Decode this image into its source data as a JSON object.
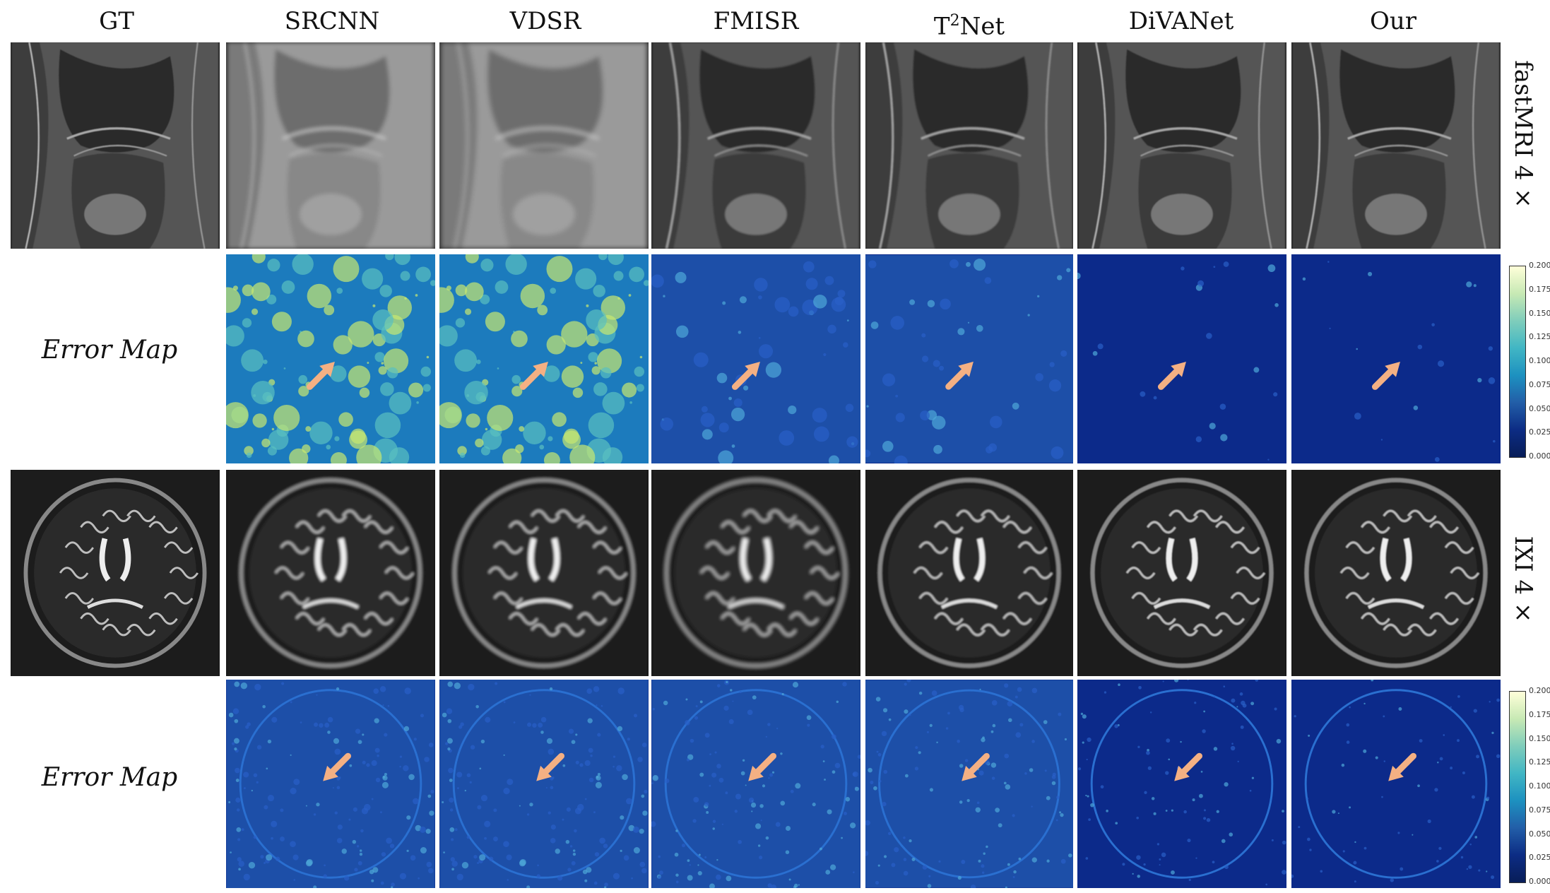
{
  "columns": [
    "GT",
    "SRCNN",
    "VDSR",
    "FMISR",
    "T",
    "DiVANet",
    "Our"
  ],
  "t2net": {
    "base": "T",
    "sup": "2",
    "rest": "Net"
  },
  "row_labels": {
    "error_map_1": "Error Map",
    "error_map_2": "Error Map"
  },
  "side_labels": {
    "fastmri": "fastMRI 4 ×",
    "ixi": "IXI 4 ×"
  },
  "colorbar_ticks": [
    "0.200",
    "0.175",
    "0.150",
    "0.125",
    "0.100",
    "0.075",
    "0.050",
    "0.025",
    "0.000"
  ],
  "colors": {
    "arrow": "#f4b083",
    "error_bg": "#0c2a8a"
  }
}
